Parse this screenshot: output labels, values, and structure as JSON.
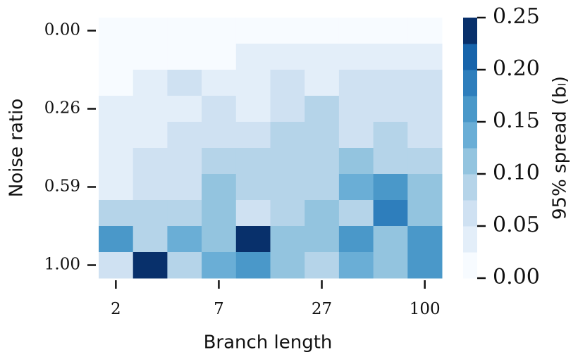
{
  "chart_data": {
    "type": "heatmap",
    "x_label": "Branch length",
    "y_label": "Noise ratio",
    "x_categories": [
      "2",
      null,
      null,
      "7",
      null,
      null,
      "27",
      null,
      null,
      "100"
    ],
    "y_categories": [
      "0.00",
      null,
      null,
      "0.26",
      null,
      null,
      "0.59",
      null,
      null,
      "1.00"
    ],
    "z": [
      [
        0.0125,
        0.0125,
        0.0125,
        0.0125,
        0.0125,
        0.0125,
        0.0125,
        0.0125,
        0.0125,
        0.0125
      ],
      [
        0.0125,
        0.0125,
        0.0125,
        0.0125,
        0.0375,
        0.0375,
        0.0375,
        0.0375,
        0.0375,
        0.0375
      ],
      [
        0.0125,
        0.0375,
        0.0625,
        0.0375,
        0.0375,
        0.0625,
        0.0375,
        0.0625,
        0.0625,
        0.0625
      ],
      [
        0.0375,
        0.0375,
        0.0375,
        0.0625,
        0.0375,
        0.0625,
        0.0875,
        0.0625,
        0.0625,
        0.0625
      ],
      [
        0.0375,
        0.0375,
        0.0625,
        0.0625,
        0.0625,
        0.0875,
        0.0875,
        0.0625,
        0.0875,
        0.0625
      ],
      [
        0.0375,
        0.0625,
        0.0625,
        0.0875,
        0.0875,
        0.0875,
        0.0875,
        0.1125,
        0.0875,
        0.0875
      ],
      [
        0.0375,
        0.0625,
        0.0625,
        0.1125,
        0.0875,
        0.0875,
        0.0875,
        0.1375,
        0.1625,
        0.1125
      ],
      [
        0.0875,
        0.0875,
        0.0875,
        0.1125,
        0.0625,
        0.0875,
        0.1125,
        0.0875,
        0.1875,
        0.1125
      ],
      [
        0.1625,
        0.0875,
        0.1375,
        0.1125,
        0.2375,
        0.1125,
        0.1125,
        0.1625,
        0.1125,
        0.1625
      ],
      [
        0.0625,
        0.2375,
        0.0875,
        0.1375,
        0.1625,
        0.1125,
        0.0875,
        0.1375,
        0.1125,
        0.1625
      ]
    ],
    "zlim": [
      0,
      0.25
    ],
    "colors": [
      "#f7fbff",
      "#e3eef9",
      "#cfe1f2",
      "#b5d4e9",
      "#93c4df",
      "#6aaed6",
      "#4a98c9",
      "#2e7ebc",
      "#1764ab",
      "#08306b"
    ],
    "colorbar_label": "95% spread (bₗ)",
    "colorbar_ticks": [
      {
        "value": 0,
        "label": "0.00"
      },
      {
        "value": 0.05,
        "label": "0.05"
      },
      {
        "value": 0.1,
        "label": "0.10"
      },
      {
        "value": 0.15,
        "label": "0.15"
      },
      {
        "value": 0.2,
        "label": "0.20"
      },
      {
        "value": 0.25,
        "label": "0.25"
      }
    ]
  }
}
